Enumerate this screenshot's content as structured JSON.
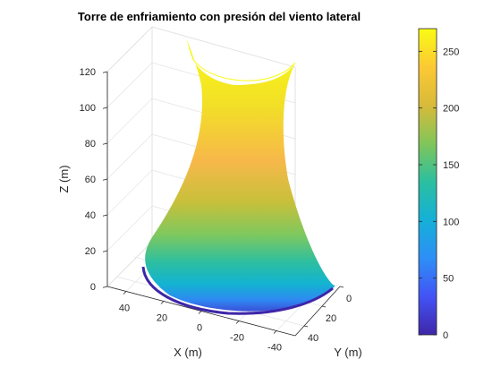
{
  "chart_data": {
    "type": "surface3d",
    "title": "Torre de enfriamiento con presión del viento lateral",
    "xlabel": "X (m)",
    "ylabel": "Y (m)",
    "zlabel": "Z (m)",
    "xlim": [
      -50,
      50
    ],
    "ylim": [
      0,
      50
    ],
    "zlim": [
      0,
      120
    ],
    "xticks": [
      "40",
      "20",
      "0",
      "-20",
      "-40"
    ],
    "yticks": [
      "0",
      "20",
      "40"
    ],
    "zticks": [
      "0",
      "20",
      "40",
      "60",
      "80",
      "100",
      "120"
    ],
    "grid": true,
    "colormap": "parula",
    "colorbar": {
      "range": [
        0,
        270
      ],
      "ticks": [
        "0",
        "50",
        "100",
        "150",
        "200",
        "250"
      ]
    },
    "surface": {
      "description_values": {
        "base_radius": 45,
        "throat_radius": 22,
        "top_radius": 27,
        "height": 125
      },
      "color_min": 0,
      "color_max": 270
    }
  }
}
